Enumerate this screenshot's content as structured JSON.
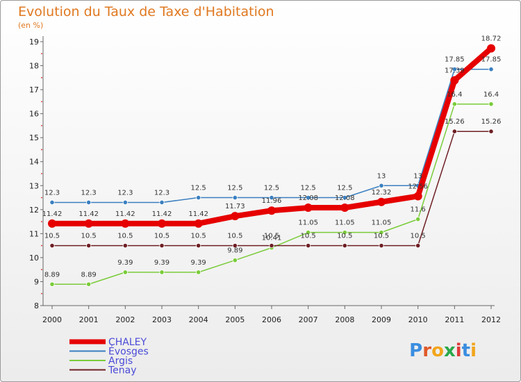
{
  "title": "Evolution du Taux de Taxe d'Habitation",
  "subtitle": "(en %)",
  "logo": [
    "P",
    "r",
    "o",
    "x",
    "i",
    "t",
    "i"
  ],
  "logo_colors": [
    "#3a8de0",
    "#e05a2a",
    "#f2a51c",
    "#2aa84a",
    "#e03a3a",
    "#3a8de0",
    "#f2a51c"
  ],
  "chart_data": {
    "type": "line",
    "x": [
      "2000",
      "2001",
      "2002",
      "2003",
      "2004",
      "2005",
      "2006",
      "2007",
      "2008",
      "2009",
      "2010",
      "2011",
      "2012"
    ],
    "ylim": [
      8,
      19
    ],
    "yticks": [
      8,
      9,
      10,
      11,
      12,
      13,
      14,
      15,
      16,
      17,
      18,
      19
    ],
    "grid": false,
    "legend": "bottom-left",
    "series": [
      {
        "name": "CHALEY",
        "color": "#e60000",
        "values": [
          11.42,
          11.42,
          11.42,
          11.42,
          11.42,
          11.73,
          11.96,
          12.08,
          12.08,
          12.32,
          12.56,
          17.39,
          18.72
        ],
        "labels": [
          "11.42",
          "11.42",
          "11.42",
          "11.42",
          "11.42",
          "11.73",
          "11.96",
          "12.08",
          "12.08",
          "12.32",
          "12.56",
          "17.39",
          "18.72"
        ]
      },
      {
        "name": "Évosges",
        "color": "#3a7fc0",
        "values": [
          12.3,
          12.3,
          12.3,
          12.3,
          12.5,
          12.5,
          12.5,
          12.5,
          12.5,
          13,
          13,
          17.85,
          17.85
        ],
        "labels": [
          "12.3",
          "12.3",
          "12.3",
          "12.3",
          "12.5",
          "12.5",
          "12.5",
          "12.5",
          "12.5",
          "13",
          "13",
          "17.85",
          "17.85"
        ]
      },
      {
        "name": "Argis",
        "color": "#7acc3a",
        "values": [
          8.89,
          8.89,
          9.39,
          9.39,
          9.39,
          9.89,
          10.41,
          11.05,
          11.05,
          11.05,
          11.6,
          16.4,
          16.4
        ],
        "labels": [
          "8.89",
          "8.89",
          "9.39",
          "9.39",
          "9.39",
          "9.89",
          "10.41",
          "11.05",
          "11.05",
          "11.05",
          "11.6",
          "16.4",
          "16.4"
        ]
      },
      {
        "name": "Tenay",
        "color": "#6e1f24",
        "values": [
          10.5,
          10.5,
          10.5,
          10.5,
          10.5,
          10.5,
          10.5,
          10.5,
          10.5,
          10.5,
          10.5,
          15.26,
          15.26
        ],
        "labels": [
          "10.5",
          "10.5",
          "10.5",
          "10.5",
          "10.5",
          "10.5",
          "10.5",
          "10.5",
          "10.5",
          "10.5",
          "10.5",
          "15.26",
          "15.26"
        ]
      }
    ]
  }
}
